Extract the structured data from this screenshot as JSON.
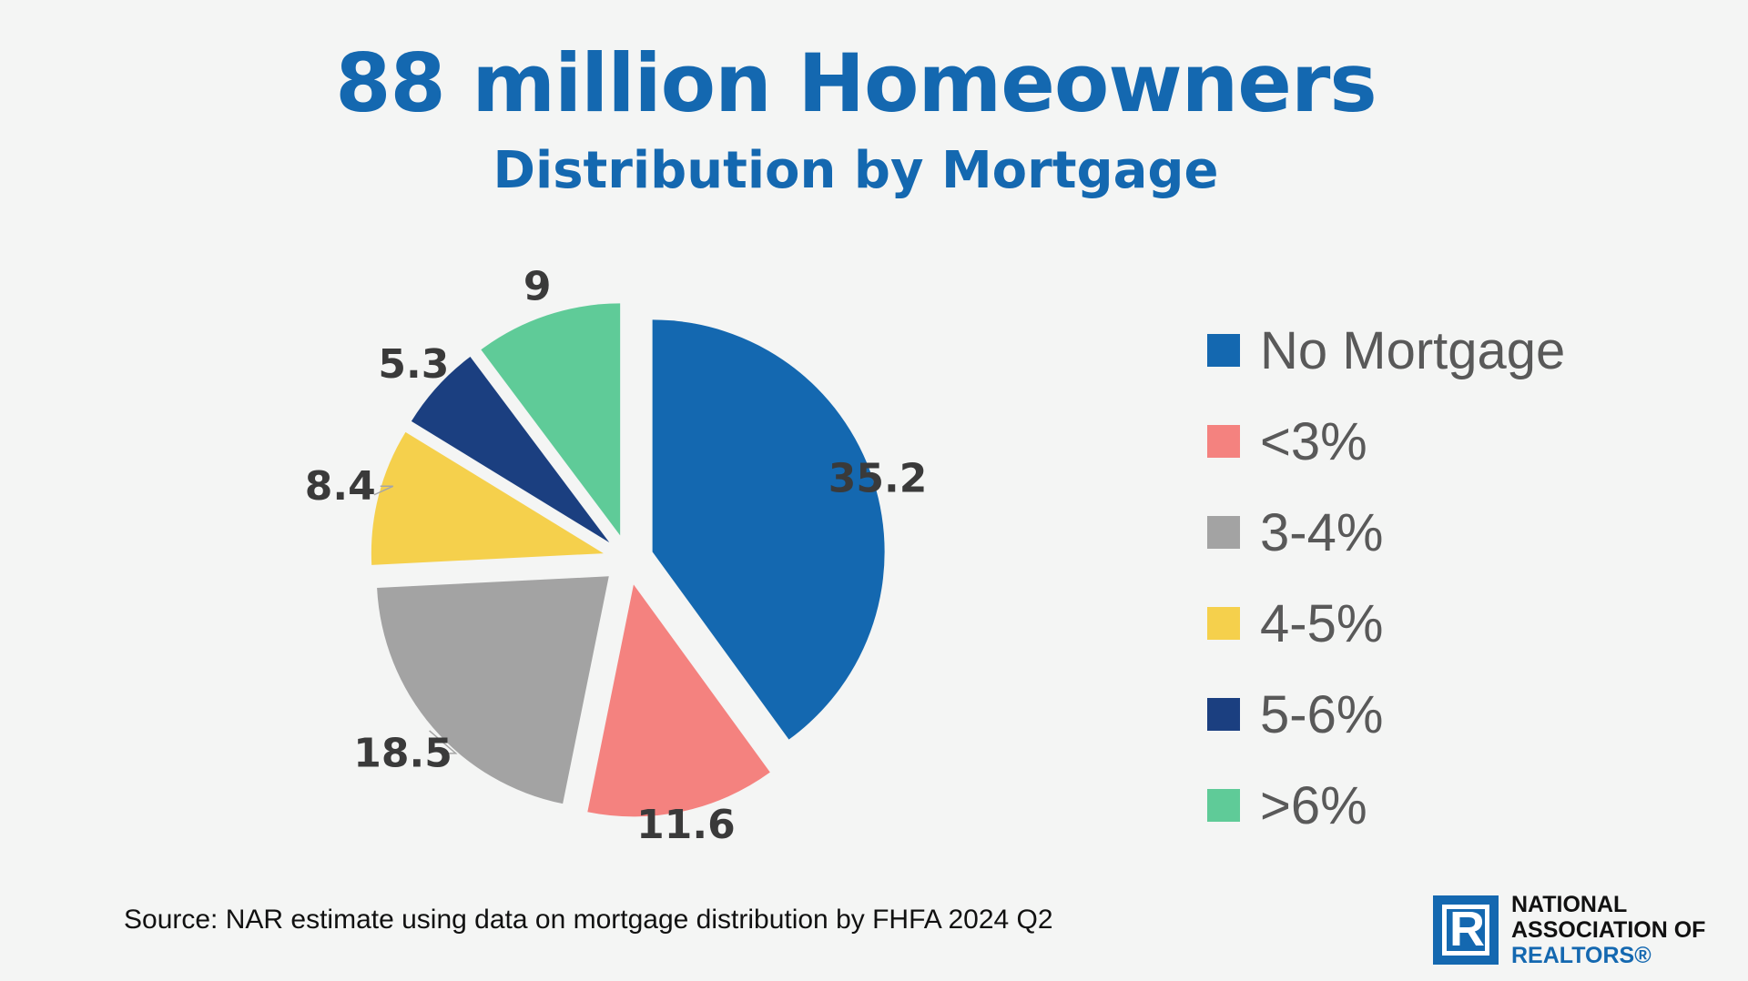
{
  "title": "88 million Homeowners",
  "subtitle": "Distribution by Mortgage",
  "source": "Source: NAR estimate using data on mortgage distribution by FHFA 2024 Q2",
  "logo": {
    "line1": "NATIONAL",
    "line2": "ASSOCIATION OF",
    "line3": "REALTORS®",
    "mark": "R"
  },
  "chart_data": {
    "type": "pie",
    "title": "88 million Homeowners",
    "subtitle": "Distribution by Mortgage",
    "legend_position": "right",
    "exploded": true,
    "categories": [
      "No Mortgage",
      "<3%",
      "3-4%",
      "4-5%",
      "5-6%",
      ">6%"
    ],
    "values": [
      35.2,
      11.6,
      18.5,
      8.4,
      5.3,
      9
    ],
    "data_labels": [
      "35.2",
      "11.6",
      "18.5",
      "8.4",
      "5.3",
      "9"
    ],
    "colors": [
      "#1468b0",
      "#f4827f",
      "#a3a3a3",
      "#f5d04c",
      "#1b3f80",
      "#5fcb98"
    ]
  }
}
